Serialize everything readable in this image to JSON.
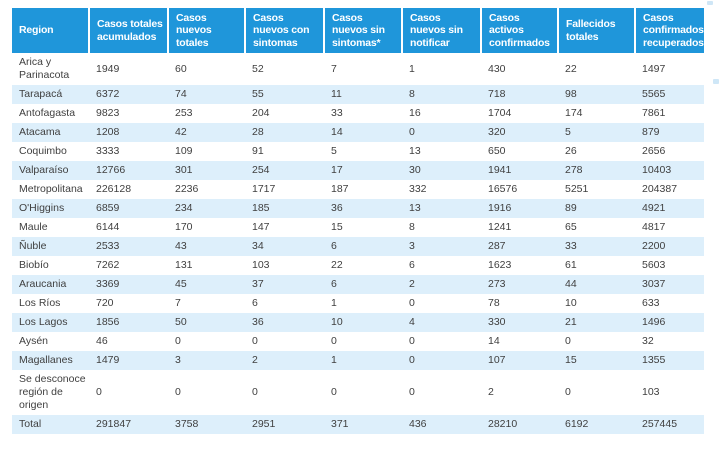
{
  "colors": {
    "header_bg": "#1f96da",
    "header_text": "#ffffff",
    "stripe_bg": "#ddeffb",
    "body_text": "#3f3f3f"
  },
  "chart_data": {
    "type": "table",
    "columns": [
      "Region",
      "Casos totales acumulados",
      "Casos nuevos totales",
      "Casos nuevos con sintomas",
      "Casos nuevos sin sintomas*",
      "Casos nuevos sin notificar",
      "Casos activos confirmados",
      "Fallecidos totales",
      "Casos confirmados recuperados"
    ],
    "rows": [
      {
        "region": "Arica y Parinacota",
        "values": [
          1949,
          60,
          52,
          7,
          1,
          430,
          22,
          1497
        ]
      },
      {
        "region": "Tarapacá",
        "values": [
          6372,
          74,
          55,
          11,
          8,
          718,
          98,
          5565
        ]
      },
      {
        "region": "Antofagasta",
        "values": [
          9823,
          253,
          204,
          33,
          16,
          1704,
          174,
          7861
        ]
      },
      {
        "region": "Atacama",
        "values": [
          1208,
          42,
          28,
          14,
          0,
          320,
          5,
          879
        ]
      },
      {
        "region": "Coquimbo",
        "values": [
          3333,
          109,
          91,
          5,
          13,
          650,
          26,
          2656
        ]
      },
      {
        "region": "Valparaíso",
        "values": [
          12766,
          301,
          254,
          17,
          30,
          1941,
          278,
          10403
        ]
      },
      {
        "region": "Metropolitana",
        "values": [
          226128,
          2236,
          1717,
          187,
          332,
          16576,
          5251,
          204387
        ]
      },
      {
        "region": "O'Higgins",
        "values": [
          6859,
          234,
          185,
          36,
          13,
          1916,
          89,
          4921
        ]
      },
      {
        "region": "Maule",
        "values": [
          6144,
          170,
          147,
          15,
          8,
          1241,
          65,
          4817
        ]
      },
      {
        "region": "Ñuble",
        "values": [
          2533,
          43,
          34,
          6,
          3,
          287,
          33,
          2200
        ]
      },
      {
        "region": "Biobío",
        "values": [
          7262,
          131,
          103,
          22,
          6,
          1623,
          61,
          5603
        ]
      },
      {
        "region": "Araucania",
        "values": [
          3369,
          45,
          37,
          6,
          2,
          273,
          44,
          3037
        ]
      },
      {
        "region": "Los Ríos",
        "values": [
          720,
          7,
          6,
          1,
          0,
          78,
          10,
          633
        ]
      },
      {
        "region": "Los Lagos",
        "values": [
          1856,
          50,
          36,
          10,
          4,
          330,
          21,
          1496
        ]
      },
      {
        "region": "Aysén",
        "values": [
          46,
          0,
          0,
          0,
          0,
          14,
          0,
          32
        ]
      },
      {
        "region": "Magallanes",
        "values": [
          1479,
          3,
          2,
          1,
          0,
          107,
          15,
          1355
        ]
      },
      {
        "region": "Se desconoce región de origen",
        "values": [
          0,
          0,
          0,
          0,
          0,
          2,
          0,
          103
        ]
      },
      {
        "region": "Total",
        "values": [
          291847,
          3758,
          2951,
          371,
          436,
          28210,
          6192,
          257445
        ]
      }
    ]
  }
}
